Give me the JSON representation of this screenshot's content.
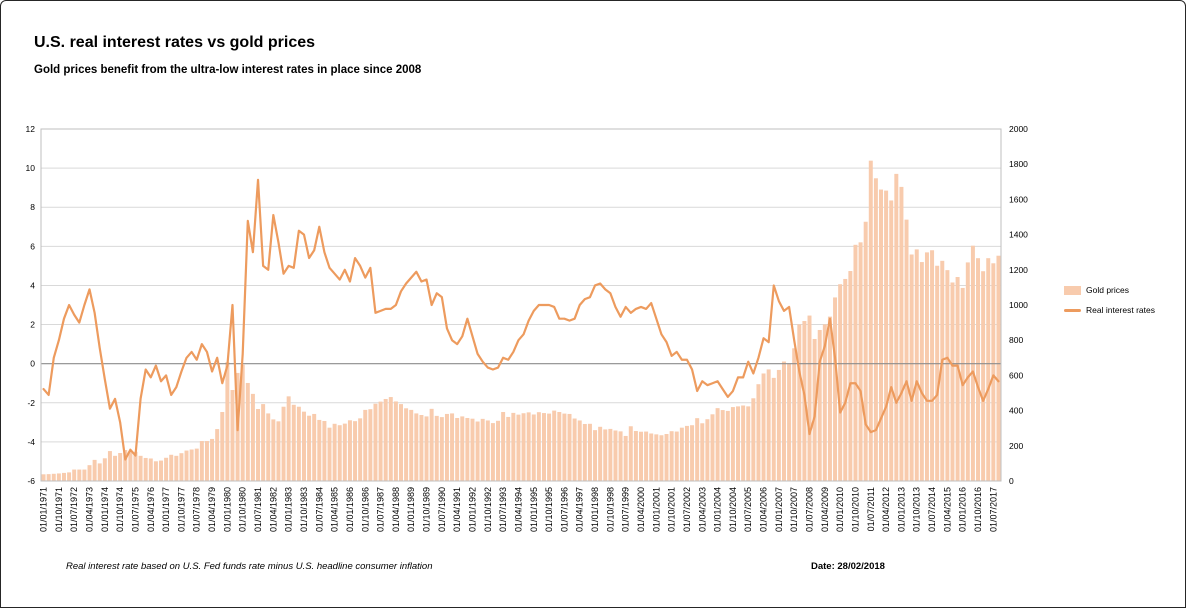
{
  "footer": {
    "note": "Real interest rate based on U.S. Fed funds rate minus U.S. headline consumer inflation",
    "date": "Date: 28/02/2018"
  },
  "chart_data": {
    "type": "combo",
    "title": "U.S. real interest rates vs gold prices",
    "subtitle": "Gold prices benefit from the ultra-low interest rates in place since 2008",
    "grid": true,
    "legend_position": "right",
    "x_tick_every": 3,
    "left_axis": {
      "min": -6,
      "max": 12,
      "step": 2
    },
    "right_axis": {
      "min": 0,
      "max": 2000,
      "step": 200
    },
    "colors": {
      "bar": "#F8CBAD",
      "line": "#ED9B5E",
      "grid": "#D9D9D9",
      "zero_line": "#8C8C8C",
      "plot_border": "#BFBFBF",
      "text": "#000000"
    },
    "categories": [
      "01/01/1971",
      "01/04/1971",
      "01/07/1971",
      "01/10/1971",
      "01/01/1972",
      "01/04/1972",
      "01/07/1972",
      "01/10/1972",
      "01/01/1973",
      "01/04/1973",
      "01/07/1973",
      "01/10/1973",
      "01/01/1974",
      "01/04/1974",
      "01/07/1974",
      "01/10/1974",
      "01/01/1975",
      "01/04/1975",
      "01/07/1975",
      "01/10/1975",
      "01/01/1976",
      "01/04/1976",
      "01/07/1976",
      "01/10/1976",
      "01/01/1977",
      "01/04/1977",
      "01/07/1977",
      "01/10/1977",
      "01/01/1978",
      "01/04/1978",
      "01/07/1978",
      "01/10/1978",
      "01/01/1979",
      "01/04/1979",
      "01/07/1979",
      "01/10/1979",
      "01/01/1980",
      "01/04/1980",
      "01/07/1980",
      "01/10/1980",
      "01/01/1981",
      "01/04/1981",
      "01/07/1981",
      "01/10/1981",
      "01/01/1982",
      "01/04/1982",
      "01/07/1982",
      "01/10/1982",
      "01/01/1983",
      "01/04/1983",
      "01/07/1983",
      "01/10/1983",
      "01/01/1984",
      "01/04/1984",
      "01/07/1984",
      "01/10/1984",
      "01/01/1985",
      "01/04/1985",
      "01/07/1985",
      "01/10/1985",
      "01/01/1986",
      "01/04/1986",
      "01/07/1986",
      "01/10/1986",
      "01/01/1987",
      "01/04/1987",
      "01/07/1987",
      "01/10/1987",
      "01/01/1988",
      "01/04/1988",
      "01/07/1988",
      "01/10/1988",
      "01/01/1989",
      "01/04/1989",
      "01/07/1989",
      "01/10/1989",
      "01/01/1990",
      "01/04/1990",
      "01/07/1990",
      "01/10/1990",
      "01/01/1991",
      "01/04/1991",
      "01/07/1991",
      "01/10/1991",
      "01/01/1992",
      "01/04/1992",
      "01/07/1992",
      "01/10/1992",
      "01/01/1993",
      "01/04/1993",
      "01/07/1993",
      "01/10/1993",
      "01/01/1994",
      "01/04/1994",
      "01/07/1994",
      "01/10/1994",
      "01/01/1995",
      "01/04/1995",
      "01/07/1995",
      "01/10/1995",
      "01/01/1996",
      "01/04/1996",
      "01/07/1996",
      "01/10/1996",
      "01/01/1997",
      "01/04/1997",
      "01/07/1997",
      "01/10/1997",
      "01/01/1998",
      "01/04/1998",
      "01/07/1998",
      "01/10/1998",
      "01/01/1999",
      "01/04/1999",
      "01/07/1999",
      "01/10/1999",
      "01/01/2000",
      "01/04/2000",
      "01/07/2000",
      "01/10/2000",
      "01/01/2001",
      "01/04/2001",
      "01/07/2001",
      "01/10/2001",
      "01/01/2002",
      "01/04/2002",
      "01/07/2002",
      "01/10/2002",
      "01/01/2003",
      "01/04/2003",
      "01/07/2003",
      "01/10/2003",
      "01/01/2004",
      "01/04/2004",
      "01/07/2004",
      "01/10/2004",
      "01/01/2005",
      "01/04/2005",
      "01/07/2005",
      "01/10/2005",
      "01/01/2006",
      "01/04/2006",
      "01/07/2006",
      "01/10/2006",
      "01/01/2007",
      "01/04/2007",
      "01/07/2007",
      "01/10/2007",
      "01/01/2008",
      "01/04/2008",
      "01/07/2008",
      "01/10/2008",
      "01/01/2009",
      "01/04/2009",
      "01/07/2009",
      "01/10/2009",
      "01/01/2010",
      "01/04/2010",
      "01/07/2010",
      "01/10/2010",
      "01/01/2011",
      "01/04/2011",
      "01/07/2011",
      "01/10/2011",
      "01/01/2012",
      "01/04/2012",
      "01/07/2012",
      "01/10/2012",
      "01/01/2013",
      "01/04/2013",
      "01/07/2013",
      "01/10/2013",
      "01/01/2014",
      "01/04/2014",
      "01/07/2014",
      "01/10/2014",
      "01/01/2015",
      "01/04/2015",
      "01/07/2015",
      "01/10/2015",
      "01/01/2016",
      "01/04/2016",
      "01/07/2016",
      "01/10/2016",
      "01/01/2017",
      "01/04/2017",
      "01/07/2017",
      "01/10/2017"
    ],
    "series": [
      {
        "name": "Gold prices",
        "type": "bar",
        "axis": "right",
        "color": "#F8CBAD",
        "values": [
          38,
          39,
          41,
          43,
          46,
          49,
          65,
          65,
          65,
          90,
          120,
          100,
          129,
          170,
          143,
          159,
          176,
          167,
          166,
          143,
          131,
          128,
          112,
          116,
          132,
          149,
          143,
          158,
          173,
          179,
          184,
          227,
          227,
          239,
          295,
          392,
          675,
          517,
          614,
          661,
          557,
          495,
          409,
          437,
          384,
          350,
          339,
          422,
          481,
          433,
          422,
          394,
          371,
          381,
          347,
          341,
          303,
          325,
          317,
          326,
          345,
          340,
          356,
          404,
          408,
          439,
          451,
          466,
          477,
          452,
          437,
          413,
          404,
          384,
          375,
          367,
          410,
          370,
          363,
          381,
          384,
          358,
          367,
          358,
          354,
          338,
          353,
          344,
          329,
          342,
          392,
          364,
          387,
          377,
          385,
          390,
          378,
          391,
          386,
          383,
          400,
          392,
          383,
          381,
          355,
          344,
          324,
          325,
          289,
          308,
          293,
          296,
          287,
          282,
          256,
          311,
          284,
          280,
          281,
          270,
          265,
          260,
          267,
          283,
          281,
          303,
          313,
          317,
          357,
          328,
          351,
          379,
          414,
          403,
          398,
          420,
          424,
          429,
          424,
          470,
          550,
          611,
          634,
          586,
          631,
          679,
          665,
          754,
          890,
          909,
          940,
          807,
          858,
          890,
          934,
          1043,
          1118,
          1148,
          1193,
          1342,
          1356,
          1473,
          1820,
          1720,
          1656,
          1650,
          1594,
          1745,
          1671,
          1485,
          1287,
          1316,
          1244,
          1299,
          1311,
          1223,
          1251,
          1198,
          1128,
          1159,
          1097,
          1242,
          1337,
          1266,
          1192,
          1266,
          1237,
          1280
        ]
      },
      {
        "name": "Real interest rates",
        "type": "line",
        "axis": "left",
        "color": "#ED9B5E",
        "values": [
          -1.3,
          -1.6,
          0.3,
          1.2,
          2.3,
          3.0,
          2.5,
          2.1,
          3.0,
          3.8,
          2.6,
          0.8,
          -0.8,
          -2.3,
          -1.8,
          -3.0,
          -4.9,
          -4.4,
          -4.7,
          -1.8,
          -0.3,
          -0.7,
          -0.1,
          -0.9,
          -0.6,
          -1.6,
          -1.2,
          -0.4,
          0.3,
          0.6,
          0.2,
          1.0,
          0.6,
          -0.4,
          0.3,
          -1.0,
          -0.1,
          3.0,
          -3.4,
          0.5,
          7.3,
          5.7,
          9.4,
          5.0,
          4.8,
          7.6,
          6.2,
          4.6,
          5.0,
          4.9,
          6.8,
          6.6,
          5.4,
          5.8,
          7.0,
          5.7,
          4.9,
          4.6,
          4.3,
          4.8,
          4.2,
          5.4,
          5.0,
          4.4,
          4.9,
          2.6,
          2.7,
          2.8,
          2.8,
          3.0,
          3.7,
          4.1,
          4.4,
          4.7,
          4.2,
          4.3,
          3.0,
          3.6,
          3.4,
          1.8,
          1.2,
          1.0,
          1.4,
          2.3,
          1.4,
          0.5,
          0.1,
          -0.2,
          -0.3,
          -0.2,
          0.3,
          0.2,
          0.6,
          1.2,
          1.5,
          2.2,
          2.7,
          3.0,
          3.0,
          3.0,
          2.9,
          2.3,
          2.3,
          2.2,
          2.3,
          3.0,
          3.3,
          3.4,
          4.0,
          4.1,
          3.8,
          3.6,
          2.9,
          2.4,
          2.9,
          2.6,
          2.8,
          2.9,
          2.8,
          3.1,
          2.3,
          1.5,
          1.1,
          0.4,
          0.6,
          0.2,
          0.2,
          -0.3,
          -1.4,
          -0.9,
          -1.1,
          -1.0,
          -0.9,
          -1.3,
          -1.7,
          -1.4,
          -0.7,
          -0.7,
          0.1,
          -0.5,
          0.3,
          1.3,
          1.1,
          4.0,
          3.2,
          2.7,
          2.9,
          1.2,
          -0.4,
          -1.6,
          -3.6,
          -2.7,
          0.1,
          0.9,
          2.3,
          0.3,
          -2.5,
          -2.0,
          -1.0,
          -1.0,
          -1.4,
          -3.1,
          -3.5,
          -3.4,
          -2.8,
          -2.2,
          -1.2,
          -2.0,
          -1.5,
          -0.9,
          -1.9,
          -0.9,
          -1.5,
          -1.9,
          -1.9,
          -1.6,
          0.2,
          0.3,
          -0.1,
          -0.1,
          -1.1,
          -0.7,
          -0.4,
          -1.2,
          -1.9,
          -1.3,
          -0.6,
          -0.9
        ]
      }
    ]
  }
}
